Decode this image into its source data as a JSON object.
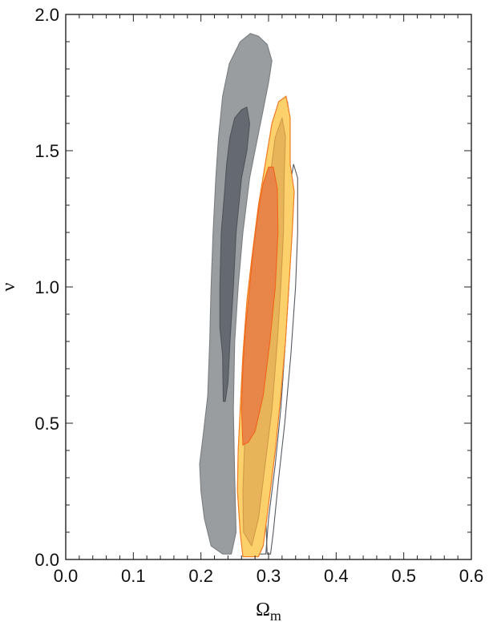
{
  "chart_data": {
    "type": "contour",
    "title": "",
    "xlabel": "Ω",
    "xlabel_subscript": "m",
    "ylabel": "ν",
    "xlim": [
      0.0,
      0.6
    ],
    "ylim": [
      0.0,
      2.0
    ],
    "x_ticks": [
      "0.0",
      "0.1",
      "0.2",
      "0.3",
      "0.4",
      "0.5",
      "0.6"
    ],
    "y_ticks": [
      "0.0",
      "0.5",
      "1.0",
      "1.5",
      "2.0"
    ],
    "grid": false,
    "legend": "none",
    "series": [
      {
        "fill": "#9a9d9f",
        "stroke": "#7b7e80",
        "points": [
          [
            0.232,
            0.02
          ],
          [
            0.215,
            0.05
          ],
          [
            0.205,
            0.15
          ],
          [
            0.2,
            0.25
          ],
          [
            0.198,
            0.35
          ],
          [
            0.203,
            0.45
          ],
          [
            0.21,
            0.6
          ],
          [
            0.213,
            0.8
          ],
          [
            0.215,
            1.0
          ],
          [
            0.218,
            1.2
          ],
          [
            0.222,
            1.4
          ],
          [
            0.226,
            1.55
          ],
          [
            0.232,
            1.7
          ],
          [
            0.242,
            1.82
          ],
          [
            0.258,
            1.9
          ],
          [
            0.273,
            1.93
          ],
          [
            0.285,
            1.92
          ],
          [
            0.298,
            1.89
          ],
          [
            0.305,
            1.83
          ],
          [
            0.3,
            1.75
          ],
          [
            0.292,
            1.65
          ],
          [
            0.28,
            1.5
          ],
          [
            0.272,
            1.4
          ],
          [
            0.262,
            1.2
          ],
          [
            0.255,
            1.0
          ],
          [
            0.25,
            0.8
          ],
          [
            0.248,
            0.55
          ],
          [
            0.25,
            0.3
          ],
          [
            0.252,
            0.1
          ],
          [
            0.245,
            0.02
          ]
        ]
      },
      {
        "fill": "#656a72",
        "stroke": "#4f545b",
        "points": [
          [
            0.233,
            0.58
          ],
          [
            0.232,
            0.75
          ],
          [
            0.228,
            0.85
          ],
          [
            0.228,
            1.0
          ],
          [
            0.23,
            1.2
          ],
          [
            0.235,
            1.35
          ],
          [
            0.238,
            1.45
          ],
          [
            0.243,
            1.55
          ],
          [
            0.25,
            1.62
          ],
          [
            0.26,
            1.65
          ],
          [
            0.268,
            1.66
          ],
          [
            0.272,
            1.6
          ],
          [
            0.268,
            1.5
          ],
          [
            0.26,
            1.4
          ],
          [
            0.252,
            1.2
          ],
          [
            0.248,
            1.0
          ],
          [
            0.243,
            0.8
          ],
          [
            0.24,
            0.65
          ],
          [
            0.236,
            0.58
          ]
        ]
      },
      {
        "fill": "none",
        "stroke": "#555a60",
        "points": [
          [
            0.286,
            0.02
          ],
          [
            0.28,
            0.1
          ],
          [
            0.278,
            0.25
          ],
          [
            0.282,
            0.4
          ],
          [
            0.287,
            0.55
          ],
          [
            0.29,
            0.75
          ],
          [
            0.293,
            0.95
          ],
          [
            0.298,
            1.15
          ],
          [
            0.305,
            1.35
          ],
          [
            0.313,
            1.5
          ],
          [
            0.32,
            1.62
          ],
          [
            0.328,
            1.68
          ],
          [
            0.332,
            1.6
          ],
          [
            0.33,
            1.4
          ],
          [
            0.333,
            1.2
          ],
          [
            0.33,
            1.0
          ],
          [
            0.325,
            0.8
          ],
          [
            0.318,
            0.55
          ],
          [
            0.31,
            0.35
          ],
          [
            0.3,
            0.15
          ],
          [
            0.296,
            0.02
          ]
        ]
      },
      {
        "fill": "none",
        "stroke": "#555a60",
        "points": [
          [
            0.298,
            0.02
          ],
          [
            0.296,
            0.15
          ],
          [
            0.3,
            0.35
          ],
          [
            0.306,
            0.55
          ],
          [
            0.312,
            0.75
          ],
          [
            0.318,
            0.95
          ],
          [
            0.323,
            1.15
          ],
          [
            0.33,
            1.35
          ],
          [
            0.337,
            1.45
          ],
          [
            0.343,
            1.4
          ],
          [
            0.343,
            1.2
          ],
          [
            0.34,
            1.0
          ],
          [
            0.333,
            0.75
          ],
          [
            0.324,
            0.5
          ],
          [
            0.315,
            0.3
          ],
          [
            0.307,
            0.1
          ],
          [
            0.303,
            0.02
          ]
        ]
      },
      {
        "fill": "#fcd06b",
        "stroke": "#f5b85b",
        "points": [
          [
            0.262,
            0.01
          ],
          [
            0.258,
            0.1
          ],
          [
            0.254,
            0.25
          ],
          [
            0.255,
            0.4
          ],
          [
            0.258,
            0.55
          ],
          [
            0.262,
            0.75
          ],
          [
            0.268,
            0.95
          ],
          [
            0.275,
            1.1
          ],
          [
            0.285,
            1.3
          ],
          [
            0.295,
            1.45
          ],
          [
            0.305,
            1.6
          ],
          [
            0.315,
            1.68
          ],
          [
            0.326,
            1.7
          ],
          [
            0.332,
            1.62
          ],
          [
            0.332,
            1.45
          ],
          [
            0.338,
            1.35
          ],
          [
            0.335,
            1.2
          ],
          [
            0.33,
            1.0
          ],
          [
            0.325,
            0.8
          ],
          [
            0.318,
            0.6
          ],
          [
            0.31,
            0.4
          ],
          [
            0.3,
            0.2
          ],
          [
            0.292,
            0.05
          ],
          [
            0.285,
            0.01
          ]
        ]
      },
      {
        "fill": "#e8b45a",
        "stroke": "#d19a48",
        "points": [
          [
            0.263,
            0.1
          ],
          [
            0.262,
            0.25
          ],
          [
            0.265,
            0.45
          ],
          [
            0.27,
            0.65
          ],
          [
            0.278,
            0.85
          ],
          [
            0.287,
            1.05
          ],
          [
            0.295,
            1.25
          ],
          [
            0.302,
            1.4
          ],
          [
            0.31,
            1.55
          ],
          [
            0.32,
            1.62
          ],
          [
            0.325,
            1.55
          ],
          [
            0.323,
            1.4
          ],
          [
            0.322,
            1.2
          ],
          [
            0.318,
            1.0
          ],
          [
            0.313,
            0.8
          ],
          [
            0.305,
            0.55
          ],
          [
            0.295,
            0.35
          ],
          [
            0.285,
            0.15
          ],
          [
            0.275,
            0.05
          ]
        ]
      },
      {
        "fill": "none",
        "stroke": "#f07a24",
        "points": [
          [
            0.262,
            0.01
          ],
          [
            0.258,
            0.1
          ],
          [
            0.254,
            0.25
          ],
          [
            0.255,
            0.4
          ],
          [
            0.258,
            0.55
          ],
          [
            0.262,
            0.75
          ],
          [
            0.268,
            0.95
          ],
          [
            0.275,
            1.1
          ],
          [
            0.285,
            1.3
          ],
          [
            0.295,
            1.45
          ],
          [
            0.305,
            1.6
          ],
          [
            0.315,
            1.68
          ],
          [
            0.326,
            1.7
          ],
          [
            0.332,
            1.62
          ],
          [
            0.332,
            1.45
          ],
          [
            0.338,
            1.35
          ],
          [
            0.335,
            1.2
          ],
          [
            0.33,
            1.0
          ],
          [
            0.325,
            0.8
          ],
          [
            0.318,
            0.6
          ],
          [
            0.31,
            0.4
          ],
          [
            0.3,
            0.2
          ],
          [
            0.292,
            0.05
          ],
          [
            0.285,
            0.01
          ]
        ]
      },
      {
        "fill": "#e8864a",
        "stroke": "#f0641c",
        "points": [
          [
            0.262,
            0.42
          ],
          [
            0.26,
            0.55
          ],
          [
            0.262,
            0.7
          ],
          [
            0.266,
            0.85
          ],
          [
            0.272,
            1.0
          ],
          [
            0.278,
            1.15
          ],
          [
            0.285,
            1.28
          ],
          [
            0.292,
            1.38
          ],
          [
            0.3,
            1.44
          ],
          [
            0.307,
            1.44
          ],
          [
            0.313,
            1.36
          ],
          [
            0.314,
            1.2
          ],
          [
            0.31,
            1.0
          ],
          [
            0.302,
            0.8
          ],
          [
            0.292,
            0.6
          ],
          [
            0.28,
            0.47
          ],
          [
            0.27,
            0.43
          ]
        ]
      }
    ]
  }
}
